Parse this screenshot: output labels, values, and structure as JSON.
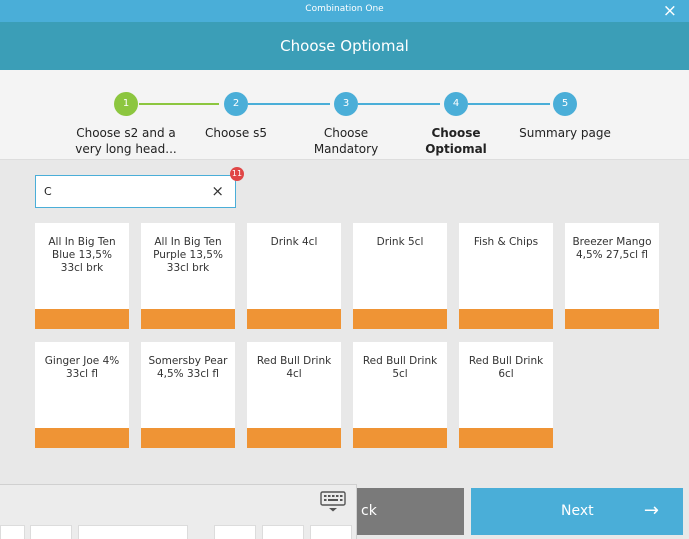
{
  "window": {
    "title": "Combination One",
    "close": "×"
  },
  "header": {
    "title": "Choose Optiomal"
  },
  "stepper": {
    "steps": [
      {
        "number": "1",
        "label_line1": "Choose s2 and a",
        "label_line2": "very long head...",
        "state": "done"
      },
      {
        "number": "2",
        "label_line1": "Choose s5",
        "label_line2": "",
        "state": "todo"
      },
      {
        "number": "3",
        "label_line1": "Choose",
        "label_line2": "Mandatory",
        "state": "todo"
      },
      {
        "number": "4",
        "label_line1": "Choose",
        "label_line2": "Optiomal",
        "state": "active"
      },
      {
        "number": "5",
        "label_line1": "Summary page",
        "label_line2": "",
        "state": "todo"
      }
    ]
  },
  "search": {
    "value": "C",
    "clear": "×",
    "badge": "11"
  },
  "products": [
    {
      "line1": "All In Big Ten",
      "line2": "Blue 13,5%",
      "line3": "33cl brk"
    },
    {
      "line1": "All In Big Ten",
      "line2": "Purple 13,5%",
      "line3": "33cl brk"
    },
    {
      "line1": "Drink 4cl",
      "line2": "",
      "line3": ""
    },
    {
      "line1": "Drink 5cl",
      "line2": "",
      "line3": ""
    },
    {
      "line1": "Fish & Chips",
      "line2": "",
      "line3": ""
    },
    {
      "line1": "Breezer Mango",
      "line2": "4,5% 27,5cl fl",
      "line3": ""
    },
    {
      "line1": "Ginger Joe 4%",
      "line2": "33cl fl",
      "line3": ""
    },
    {
      "line1": "Somersby Pear",
      "line2": "4,5% 33cl fl",
      "line3": ""
    },
    {
      "line1": "Red Bull Drink",
      "line2": "4cl",
      "line3": ""
    },
    {
      "line1": "Red Bull Drink",
      "line2": "5cl",
      "line3": ""
    },
    {
      "line1": "Red Bull Drink",
      "line2": "6cl",
      "line3": ""
    }
  ],
  "footer": {
    "back_label": "ck",
    "next_label": "Next",
    "next_arrow": "→"
  },
  "colors": {
    "accent": "#4aaed8",
    "header": "#3b9eb7",
    "done": "#8cc63f",
    "tile_bar": "#ef9435",
    "back": "#7a7a7a",
    "badge": "#e04646"
  },
  "icons": {
    "close": "close-icon",
    "clear": "clear-search-icon",
    "next": "arrow-right-icon",
    "keyboard": "keyboard-icon"
  }
}
